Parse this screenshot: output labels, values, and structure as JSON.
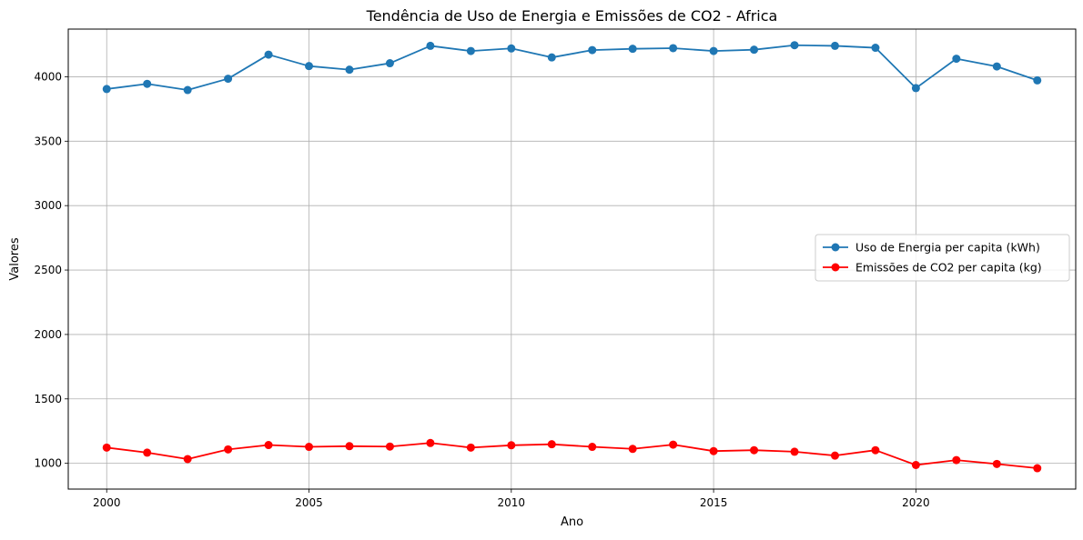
{
  "chart_data": {
    "type": "line",
    "title": "Tendência de Uso de Energia e Emissões de CO2 - Africa",
    "xlabel": "Ano",
    "ylabel": "Valores",
    "xlim": [
      1999.05,
      2023.95
    ],
    "ylim": [
      800,
      4370
    ],
    "xticks": [
      2000,
      2005,
      2010,
      2015,
      2020
    ],
    "yticks": [
      1000,
      1500,
      2000,
      2500,
      3000,
      3500,
      4000
    ],
    "grid": true,
    "legend_position": "center-right",
    "x": [
      2000,
      2001,
      2002,
      2003,
      2004,
      2005,
      2006,
      2007,
      2008,
      2009,
      2010,
      2011,
      2012,
      2013,
      2014,
      2015,
      2016,
      2017,
      2018,
      2019,
      2020,
      2021,
      2022,
      2023
    ],
    "series": [
      {
        "name": "Uso de Energia per capita (kWh)",
        "color": "#1f77b4",
        "values": [
          3905,
          3945,
          3897,
          3985,
          4172,
          4083,
          4055,
          4105,
          4240,
          4200,
          4220,
          4150,
          4207,
          4217,
          4222,
          4200,
          4210,
          4245,
          4240,
          4225,
          3912,
          4140,
          4080,
          3972
        ]
      },
      {
        "name": "Emissões de CO2 per capita (kg)",
        "color": "#ff0000",
        "values": [
          1122,
          1083,
          1033,
          1108,
          1142,
          1128,
          1133,
          1130,
          1158,
          1122,
          1140,
          1148,
          1128,
          1112,
          1145,
          1095,
          1102,
          1090,
          1060,
          1102,
          987,
          1025,
          995,
          962
        ]
      }
    ]
  }
}
